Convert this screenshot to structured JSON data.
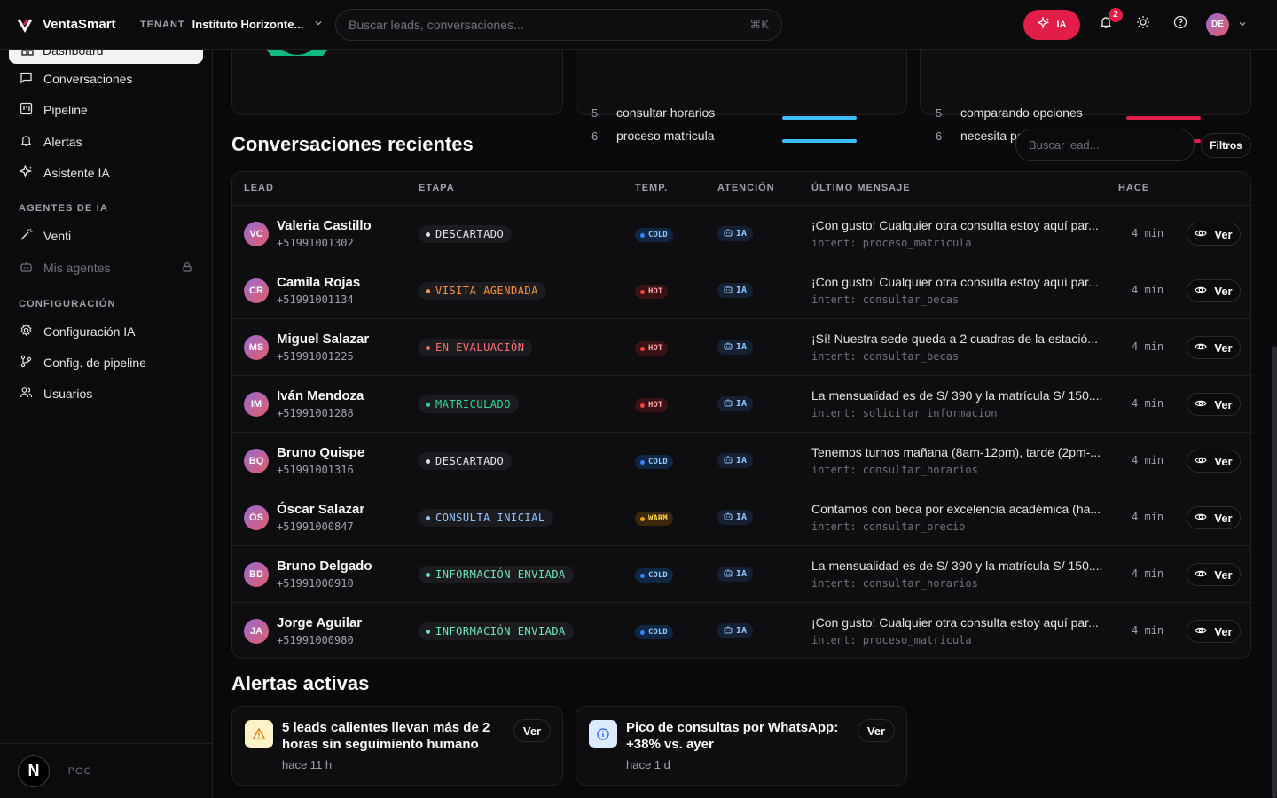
{
  "brand": {
    "name": "VentaSmart"
  },
  "tenant": {
    "label": "TENANT",
    "name": "Instituto Horizonte..."
  },
  "search": {
    "placeholder": "Buscar leads, conversaciones...",
    "shortcut": "⌘K"
  },
  "topbar": {
    "ia_label": "IA",
    "notifications_count": "2",
    "user_initials": "DE"
  },
  "sidebar": {
    "active_item": "Dashboard",
    "items": [
      {
        "label": "Conversaciones",
        "icon": "chat-icon"
      },
      {
        "label": "Pipeline",
        "icon": "kanban-icon"
      },
      {
        "label": "Alertas",
        "icon": "bell-icon"
      },
      {
        "label": "Asistente IA",
        "icon": "sparkles-icon"
      }
    ],
    "section_agents": "AGENTES DE IA",
    "agents": [
      {
        "label": "Venti",
        "icon": "wand-icon"
      },
      {
        "label": "Mis agentes",
        "icon": "bot-icon",
        "locked": true
      }
    ],
    "section_config": "CONFIGURACIÓN",
    "config": [
      {
        "label": "Configuración IA",
        "icon": "gear-icon"
      },
      {
        "label": "Config. de pipeline",
        "icon": "git-branch-icon"
      },
      {
        "label": "Usuarios",
        "icon": "users-icon"
      }
    ],
    "footer": {
      "logo": "N",
      "label": "POC"
    }
  },
  "intents": {
    "rows": [
      {
        "num": "5",
        "label": "consultar horarios",
        "fill": 0.75
      },
      {
        "num": "6",
        "label": "proceso matricula",
        "fill": 0.75
      }
    ]
  },
  "objections": {
    "rows": [
      {
        "num": "5",
        "label": "comparando opciones",
        "fill": 0.75
      },
      {
        "num": "6",
        "label": "necesita pensarlo",
        "fill": 0.75
      }
    ]
  },
  "conversations": {
    "title": "Conversaciones recientes",
    "search_placeholder": "Buscar lead...",
    "filter_label": "Filtros",
    "headers": {
      "lead": "LEAD",
      "stage": "ETAPA",
      "temp": "TEMP.",
      "attention": "ATENCIÓN",
      "last_message": "ÚLTIMO MENSAJE",
      "ago": "HACE"
    },
    "view_label": "Ver",
    "rows": [
      {
        "initials": "VC",
        "name": "Valeria Castillo",
        "phone": "+51991001302",
        "stage": "DESCARTADO",
        "stage_color": "#e4e4e7",
        "temp": "COLD",
        "attention": "IA",
        "message": "¡Con gusto! Cualquier otra consulta estoy aquí par...",
        "intent": "intent: proceso_matricula",
        "ago": "4 min"
      },
      {
        "initials": "CR",
        "name": "Camila Rojas",
        "phone": "+51991001134",
        "stage": "VISITA AGENDADA",
        "stage_color": "#fb923c",
        "temp": "HOT",
        "attention": "IA",
        "message": "¡Con gusto! Cualquier otra consulta estoy aquí par...",
        "intent": "intent: consultar_becas",
        "ago": "4 min"
      },
      {
        "initials": "MS",
        "name": "Miguel Salazar",
        "phone": "+51991001225",
        "stage": "EN EVALUACIÓN",
        "stage_color": "#f87171",
        "temp": "HOT",
        "attention": "IA",
        "message": "¡Sí! Nuestra sede queda a 2 cuadras de la estació...",
        "intent": "intent: consultar_becas",
        "ago": "4 min"
      },
      {
        "initials": "IM",
        "name": "Iván Mendoza",
        "phone": "+51991001288",
        "stage": "MATRICULADO",
        "stage_color": "#34d399",
        "temp": "HOT",
        "attention": "IA",
        "message": "La mensualidad es de S/ 390 y la matrícula S/ 150....",
        "intent": "intent: solicitar_informacion",
        "ago": "4 min"
      },
      {
        "initials": "BQ",
        "name": "Bruno Quispe",
        "phone": "+51991001316",
        "stage": "DESCARTADO",
        "stage_color": "#e4e4e7",
        "temp": "COLD",
        "attention": "IA",
        "message": "Tenemos turnos mañana (8am-12pm), tarde (2pm-...",
        "intent": "intent: consultar_horarios",
        "ago": "4 min"
      },
      {
        "initials": "ÓS",
        "name": "Óscar Salazar",
        "phone": "+51991000847",
        "stage": "CONSULTA INICIAL",
        "stage_color": "#93c5fd",
        "temp": "WARM",
        "attention": "IA",
        "message": "Contamos con beca por excelencia académica (ha...",
        "intent": "intent: consultar_precio",
        "ago": "4 min"
      },
      {
        "initials": "BD",
        "name": "Bruno Delgado",
        "phone": "+51991000910",
        "stage": "INFORMACIÓN ENVIADA",
        "stage_color": "#6ee7b7",
        "temp": "COLD",
        "attention": "IA",
        "message": "La mensualidad es de S/ 390 y la matrícula S/ 150....",
        "intent": "intent: consultar_horarios",
        "ago": "4 min"
      },
      {
        "initials": "JA",
        "name": "Jorge Aguilar",
        "phone": "+51991000980",
        "stage": "INFORMACIÓN ENVIADA",
        "stage_color": "#6ee7b7",
        "temp": "COLD",
        "attention": "IA",
        "message": "¡Con gusto! Cualquier otra consulta estoy aquí par...",
        "intent": "intent: proceso_matricula",
        "ago": "4 min"
      }
    ]
  },
  "alerts": {
    "title": "Alertas activas",
    "items": [
      {
        "icon": "warning-icon",
        "title": "5 leads calientes llevan más de 2 horas sin seguimiento humano",
        "time": "hace 11 h",
        "button": "Ver"
      },
      {
        "icon": "info-icon",
        "title": "Pico de consultas por WhatsApp: +38% vs. ayer",
        "time": "hace 1 d",
        "button": "Ver"
      }
    ]
  },
  "colors": {
    "accent": "#e11d48",
    "hot": "#ef4444",
    "cold": "#3b82f6",
    "warm": "#f59e0b",
    "bar_blue": "#38bdf8",
    "bar_red": "#e11d48"
  }
}
